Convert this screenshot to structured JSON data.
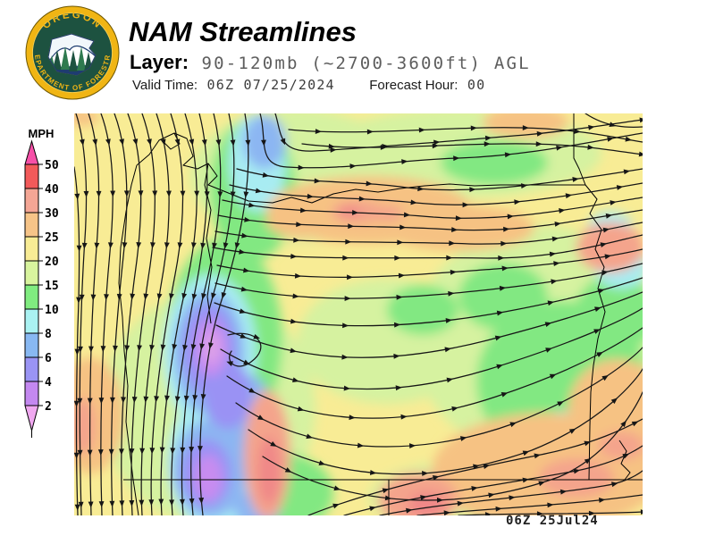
{
  "header": {
    "title": "NAM Streamlines",
    "layer_label": "Layer:",
    "layer_value": "90-120mb (~2700-3600ft) AGL",
    "valid_time_label": "Valid Time:",
    "valid_time_value": "06Z 07/25/2024",
    "forecast_hour_label": "Forecast Hour:",
    "forecast_hour_value": "00"
  },
  "logo": {
    "top_text": "OREGON",
    "bottom_text": "DEPARTMENT OF FORESTRY",
    "ring_color": "#f0b514",
    "disk_color": "#1d5240",
    "scene_border_color": "#1e3c70"
  },
  "legend": {
    "units": "MPH",
    "labels": [
      "50",
      "40",
      "30",
      "25",
      "20",
      "15",
      "10",
      "8",
      "6",
      "4",
      "2"
    ],
    "colors": [
      "#f25a5a",
      "#f4a695",
      "#f6c488",
      "#f8ec95",
      "#d8f49e",
      "#80ec80",
      "#aaf2f2",
      "#88b8f2",
      "#9a94f4",
      "#c488f0"
    ],
    "arrow_top_color": "#f650a8",
    "arrow_bottom_color": "#f0a8f0"
  },
  "map": {
    "timestamp": "06Z 25Jul24",
    "base_color": "#f8ec95",
    "stream_style": {
      "color": "#161616",
      "width": 1.25,
      "arrow_spacing": 58,
      "arrow_size": 7
    },
    "blobs": [
      [
        250,
        70,
        120,
        75,
        "#d6f2a0"
      ],
      [
        430,
        45,
        160,
        50,
        "#d6f2a0"
      ],
      [
        350,
        255,
        100,
        70,
        "#d6f2a0"
      ],
      [
        520,
        255,
        140,
        130,
        "#d6f2a0"
      ],
      [
        150,
        330,
        120,
        130,
        "#d6f2a0"
      ],
      [
        430,
        430,
        100,
        40,
        "#d6f2a0"
      ],
      [
        200,
        85,
        48,
        80,
        "#82e882"
      ],
      [
        168,
        255,
        65,
        115,
        "#82e882"
      ],
      [
        545,
        300,
        95,
        90,
        "#82e882"
      ],
      [
        480,
        205,
        50,
        38,
        "#82e882"
      ],
      [
        470,
        55,
        60,
        25,
        "#82e882"
      ],
      [
        230,
        425,
        60,
        45,
        "#82e882"
      ],
      [
        605,
        225,
        45,
        45,
        "#82e882"
      ],
      [
        390,
        220,
        40,
        28,
        "#82e882"
      ],
      [
        205,
        55,
        32,
        55,
        "#a8ecf2"
      ],
      [
        152,
        268,
        52,
        88,
        "#a8ecf2"
      ],
      [
        160,
        390,
        55,
        80,
        "#a8ecf2"
      ],
      [
        612,
        172,
        30,
        24,
        "#a8ecf2"
      ],
      [
        545,
        355,
        28,
        22,
        "#a8ecf2"
      ],
      [
        600,
        128,
        25,
        18,
        "#a8ecf2"
      ],
      [
        213,
        32,
        24,
        30,
        "#8cb6f2"
      ],
      [
        151,
        268,
        40,
        70,
        "#8cb6f2"
      ],
      [
        185,
        335,
        38,
        45,
        "#8cb6f2"
      ],
      [
        152,
        398,
        42,
        55,
        "#8cb6f2"
      ],
      [
        205,
        442,
        26,
        22,
        "#8cb6f2"
      ],
      [
        151,
        265,
        30,
        52,
        "#9a92f4"
      ],
      [
        172,
        315,
        26,
        38,
        "#9a92f4"
      ],
      [
        148,
        403,
        28,
        38,
        "#9a92f4"
      ],
      [
        153,
        262,
        18,
        32,
        "#c88cf0"
      ],
      [
        150,
        408,
        16,
        26,
        "#c88cf0"
      ],
      [
        154,
        262,
        10,
        18,
        "#dca0e8"
      ],
      [
        330,
        108,
        115,
        38,
        "#f6c283"
      ],
      [
        430,
        128,
        85,
        26,
        "#f6c283"
      ],
      [
        18,
        338,
        38,
        65,
        "#f6c283"
      ],
      [
        530,
        400,
        130,
        65,
        "#f6c283"
      ],
      [
        608,
        330,
        55,
        55,
        "#f6c283"
      ],
      [
        505,
        10,
        48,
        18,
        "#f6c283"
      ],
      [
        8,
        4,
        20,
        10,
        "#f6c283"
      ],
      [
        255,
        120,
        40,
        20,
        "#f6c283"
      ],
      [
        318,
        110,
        30,
        13,
        "#f4a48c"
      ],
      [
        600,
        150,
        38,
        28,
        "#f4a48c"
      ],
      [
        216,
        382,
        26,
        72,
        "#f4a48c"
      ],
      [
        385,
        432,
        45,
        30,
        "#f4a48c"
      ],
      [
        562,
        408,
        42,
        22,
        "#f4a48c"
      ],
      [
        612,
        372,
        26,
        16,
        "#f4a48c"
      ],
      [
        10,
        350,
        14,
        32,
        "#f4a48c"
      ],
      [
        350,
        112,
        18,
        9,
        "#f4a48c"
      ],
      [
        308,
        110,
        12,
        6,
        "#f08888"
      ],
      [
        395,
        438,
        22,
        14,
        "#f08888"
      ],
      [
        218,
        400,
        13,
        38,
        "#f08888"
      ]
    ],
    "borders": [
      [
        70,
        58,
        64,
        80,
        58,
        110,
        52,
        150,
        50,
        190,
        54,
        228,
        56,
        266,
        60,
        305,
        58,
        345,
        63,
        385,
        66,
        410,
        72,
        450
      ],
      [
        70,
        58,
        84,
        46,
        95,
        30,
        112,
        22,
        126,
        28,
        133,
        48,
        122,
        58,
        138,
        62,
        150,
        56,
        160,
        70,
        150,
        80,
        170,
        88,
        195,
        98,
        222,
        100,
        243,
        94,
        266,
        100,
        290,
        90,
        315,
        85,
        340,
        88,
        365,
        84,
        392,
        81,
        420,
        79,
        448,
        81,
        477,
        80,
        572,
        80
      ],
      [
        559,
        0,
        559,
        50,
        565,
        62,
        572,
        80,
        585,
        96,
        577,
        112,
        590,
        130,
        583,
        152,
        593,
        172,
        586,
        196,
        594,
        222,
        586,
        252,
        581,
        282,
        578,
        312,
        577,
        350,
        576,
        410
      ],
      [
        55,
        410,
        636,
        410
      ],
      [
        352,
        410,
        352,
        450
      ],
      [
        150,
        56,
        146,
        80,
        153,
        108,
        148,
        140,
        154,
        172,
        149,
        205,
        153,
        235
      ],
      [
        112,
        22,
        118,
        34,
        108,
        40,
        100,
        32
      ],
      [
        610,
        366,
        618,
        378,
        612,
        392,
        622,
        402,
        616,
        410
      ]
    ],
    "streamlines": [
      "M 2,0 C 12,30 16,80 12,140 C 8,200 4,300 8,450",
      "M 16,0 C 28,35 30,85 25,150 C 20,215 15,310 19,450",
      "M 30,0 C 44,38 46,90 40,155 C 34,220 27,320 31,450",
      "M 45,0 C 60,40 62,95 55,160 C 48,225 38,330 43,450",
      "M 60,0 C 76,42 78,100 70,165 C 61,230 49,340 54,450",
      "M 76,0 C 92,45 94,105 85,170 C 75,235 60,350 65,450",
      "M 92,0 C 108,48 110,110 100,175 C 89,240 71,355 76,450",
      "M 108,0 C 124,50 126,112 113,180 C 100,248 82,360 87,450",
      "M 124,0 C 140,52 142,115 127,185 C 111,252 93,365 98,450",
      "M 0,60 C 6,100 7,160 4,240 C 2,320 2,390 4,450",
      "M 140,0 C 154,55 150,120 137,190 C 123,258 104,368 110,450",
      "M 156,0 C 170,58 164,125 146,198 C 129,265 116,372 122,450",
      "M 173,0 C 186,60 176,132 155,205 C 136,272 126,378 133,450",
      "M 191,0 C 202,62 188,138 164,212 C 143,280 136,382 144,450",
      "M 208,0 C 216,28 204,58 238,60 C 300,64 360,52 430,50 C 510,47 575,32 636,22",
      "M 225,0 C 232,22 228,44 268,42 C 340,38 430,30 505,24 C 560,19 600,12 636,7",
      "M 240,18 C 320,26 420,14 500,16 C 560,17 600,26 636,32",
      "M 255,34 C 330,44 430,32 510,34 C 570,35 605,42 636,46",
      "M 572,0 C 596,16 620,16 636,15",
      "M 182,62 C 245,80 305,74 365,82 C 435,92 525,80 636,62",
      "M 174,80 C 242,98 312,92 382,100 C 462,108 545,94 636,78",
      "M 166,97 C 242,114 322,108 402,116 C 482,122 562,106 636,94",
      "M 161,114 C 242,130 332,124 422,130 C 502,134 572,118 636,108",
      "M 158,132 C 242,148 342,142 442,146 C 522,148 582,132 636,122",
      "M 155,150 C 242,167 352,160 462,162 C 542,162 592,146 636,136",
      "M 160,170 C 262,192 362,182 472,174 C 552,168 602,160 636,152",
      "M 158,190 C 262,217 382,207 492,194 C 572,184 612,174 636,168",
      "M 157,212 C 252,247 372,242 482,222 C 572,205 612,192 636,184",
      "M 159,237 C 252,282 352,282 462,254 C 562,228 612,210 636,200",
      "M 164,264 C 252,317 352,320 462,287 C 562,256 617,230 636,218",
      "M 171,294 C 252,350 362,354 472,317 C 572,284 622,250 636,240",
      "M 181,324 C 262,382 382,387 492,347 C 582,312 627,272 636,262",
      "M 195,354 C 282,414 402,417 512,377 C 592,345 630,297 636,286",
      "M 211,384 C 302,442 432,447 542,407 C 602,382 632,322 636,312",
      "M 262,450 C 332,422 422,402 522,382 C 582,370 617,352 636,342",
      "M 302,450 C 382,427 472,417 562,400 C 602,392 624,380 636,372",
      "M 342,450 C 422,434 512,430 592,417 C 612,414 627,407 636,400",
      "M 384,450 C 462,442 542,440 636,427",
      "M 430,450 C 502,447 572,449 636,446",
      "M 172,248 C 207,240 220,262 198,278 C 182,290 168,278 176,266"
    ]
  }
}
